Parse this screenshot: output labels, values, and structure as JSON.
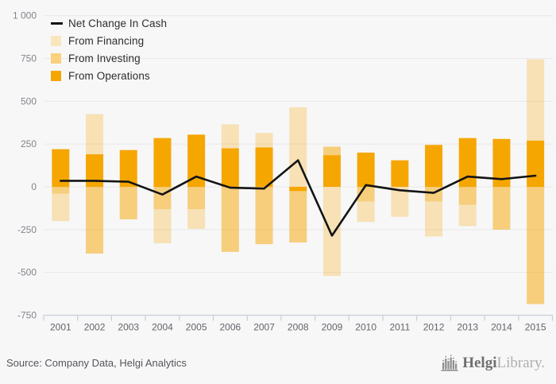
{
  "chart_data": {
    "type": "bar",
    "subtype": "stacked-bars-with-net-line",
    "categories": [
      "2001",
      "2002",
      "2003",
      "2004",
      "2005",
      "2006",
      "2007",
      "2008",
      "2009",
      "2010",
      "2011",
      "2012",
      "2013",
      "2014",
      "2015"
    ],
    "series": [
      {
        "name": "From Operations",
        "fill": "#F6A600",
        "swatch_color": "#F6A600",
        "values": [
          220,
          190,
          215,
          285,
          305,
          225,
          230,
          -25,
          185,
          200,
          155,
          245,
          285,
          280,
          270
        ]
      },
      {
        "name": "From Investing",
        "fill": "rgba(246,166,0,0.50)",
        "swatch_color": "#FBD07E",
        "values": [
          -40,
          -390,
          -190,
          -130,
          -130,
          -380,
          -335,
          -300,
          50,
          -85,
          0,
          -85,
          -105,
          -250,
          -685
        ]
      },
      {
        "name": "From Financing",
        "fill": "rgba(246,166,0,0.27)",
        "swatch_color": "#FAE6BC",
        "values": [
          -160,
          235,
          0,
          -200,
          -115,
          140,
          85,
          465,
          -520,
          -120,
          -175,
          -205,
          -125,
          0,
          475
        ]
      }
    ],
    "line_series": {
      "name": "Net Change In Cash",
      "color": "#141414",
      "values": [
        35,
        35,
        30,
        -45,
        60,
        -5,
        -10,
        155,
        -285,
        10,
        -20,
        -35,
        60,
        45,
        65
      ]
    },
    "ylim": [
      -750,
      1000
    ],
    "yticks": [
      1000,
      750,
      500,
      250,
      0,
      -250,
      -500,
      -750
    ],
    "ytick_labels": [
      "1 000",
      "750",
      "500",
      "250",
      "0",
      "-250",
      "-500",
      "-750"
    ],
    "grid": true,
    "legend_position": "top-left",
    "colors": {
      "background": "#f7f7f8",
      "gridline": "#e8e8e8",
      "axis_line": "#c7cdd9",
      "ytick_text": "#84848c",
      "xtick_text": "#62646a",
      "net_line": "#141414"
    }
  },
  "footer": {
    "source_text": "Source: Company Data, Helgi Analytics",
    "brand": {
      "bold": "Helgi",
      "light": "Library."
    }
  }
}
